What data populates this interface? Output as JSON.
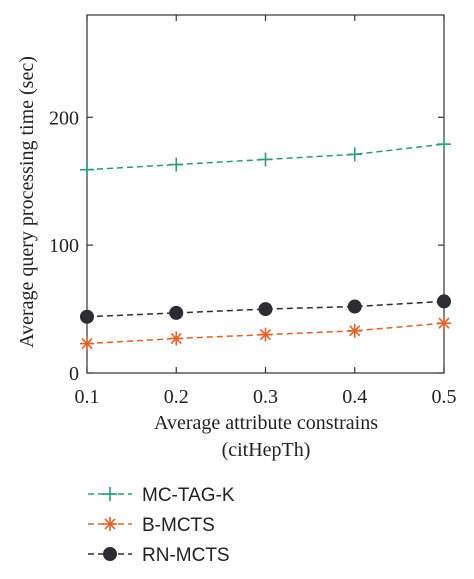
{
  "chart_data": {
    "type": "line",
    "x": [
      0.1,
      0.2,
      0.3,
      0.4,
      0.5
    ],
    "x_tick_labels": [
      "0.1",
      "0.2",
      "0.3",
      "0.4",
      "0.5"
    ],
    "y_ticks": [
      0,
      100,
      200
    ],
    "y_tick_labels": [
      "0",
      "100",
      "200"
    ],
    "xlim": [
      0.1,
      0.5
    ],
    "ylim": [
      0,
      280
    ],
    "xlabel": "Average attribute constrains",
    "xlabel_sub": "(citHepTh)",
    "ylabel": "Average query processing time (sec)",
    "grid": false,
    "legend_position": "bottom",
    "series": [
      {
        "name": "MC-TAG-K",
        "values": [
          159,
          163,
          167,
          171,
          179
        ],
        "color": "#2a9a7e",
        "marker": "plus"
      },
      {
        "name": "B-MCTS",
        "values": [
          23,
          27,
          30,
          33,
          39
        ],
        "color": "#e0602a",
        "marker": "asterisk"
      },
      {
        "name": "RN-MCTS",
        "values": [
          44,
          47,
          50,
          52,
          56
        ],
        "color": "#2b2d33",
        "marker": "circle"
      }
    ]
  }
}
